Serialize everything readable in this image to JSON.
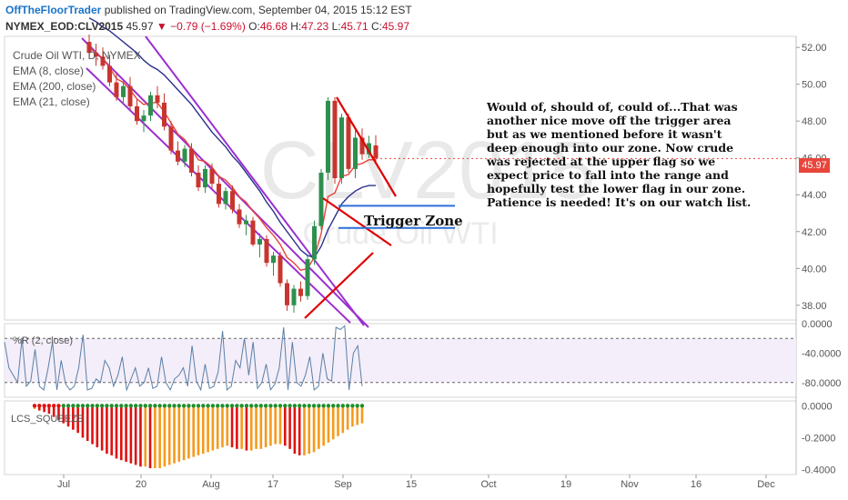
{
  "header": {
    "author": "OffTheFloorTrader",
    "published_text": "published on TradingView.com, September 04, 2015 15:12 EST",
    "symbol": "NYMEX_EOD:CLV2015",
    "last": "45.97",
    "change": "▼ −0.79 (−1.69%)",
    "open_label": "O:",
    "open": "46.68",
    "high_label": "H:",
    "high": "47.23",
    "low_label": "L:",
    "low": "45.71",
    "close_label": "C:",
    "close": "45.97"
  },
  "overlays": [
    "Crude Oil WTI, D, NYMEX",
    "EMA (8, close)",
    "EMA (200, close)",
    "EMA (21, close)"
  ],
  "watermark": {
    "big": "CLV2015",
    "small": "Crude Oil WTI"
  },
  "annotation": "Would of, should of, could of...That was another nice move off the trigger area but as we mentioned before it wasn't deep enough into our zone.  Now crude was rejected at the upper flag so we expect price to fall into the range and hopefully test the lower flag in our zone.  Patience is needed!  It's on our watch list.",
  "trigger_zone_label": "Trigger Zone",
  "current_price_tag": "45.97",
  "colors": {
    "up": "#2f8f4e",
    "down": "#c8352e",
    "ema8": "#e8453c",
    "ema21": "#2b2f8c",
    "channel": "#9b2fd0",
    "flag": "#e00000",
    "zone": "#2e6fd9",
    "wr": "#5b7fa6",
    "sq_red": "#e01010",
    "sq_orange": "#f59a1b",
    "dot_green": "#1f8f2e",
    "dot_red": "#e01010"
  },
  "chart_data": [
    {
      "type": "candlestick",
      "title": "Crude Oil WTI, D, NYMEX",
      "x_ticks": [
        "Jul",
        "20",
        "Aug",
        "17",
        "Sep",
        "15",
        "Oct",
        "19",
        "Nov",
        "16",
        "Dec"
      ],
      "y_ticks": [
        "52.00",
        "50.00",
        "48.00",
        "46.00",
        "44.00",
        "42.00",
        "40.00",
        "38.00"
      ],
      "ylim": [
        37.2,
        52.6
      ],
      "candles": [
        {
          "o": 52.3,
          "h": 52.7,
          "l": 51.4,
          "c": 51.7
        },
        {
          "o": 51.7,
          "h": 52.2,
          "l": 51.0,
          "c": 51.5
        },
        {
          "o": 51.5,
          "h": 52.0,
          "l": 50.8,
          "c": 51.0
        },
        {
          "o": 51.0,
          "h": 51.6,
          "l": 49.9,
          "c": 50.1
        },
        {
          "o": 50.1,
          "h": 50.6,
          "l": 49.1,
          "c": 49.3
        },
        {
          "o": 49.3,
          "h": 50.2,
          "l": 48.9,
          "c": 49.9
        },
        {
          "o": 49.9,
          "h": 50.4,
          "l": 48.6,
          "c": 48.8
        },
        {
          "o": 48.8,
          "h": 49.2,
          "l": 47.8,
          "c": 48.0
        },
        {
          "o": 48.0,
          "h": 48.6,
          "l": 47.4,
          "c": 48.3
        },
        {
          "o": 48.3,
          "h": 49.6,
          "l": 48.0,
          "c": 49.4
        },
        {
          "o": 49.4,
          "h": 49.9,
          "l": 48.7,
          "c": 49.0
        },
        {
          "o": 49.0,
          "h": 49.5,
          "l": 47.5,
          "c": 47.7
        },
        {
          "o": 47.7,
          "h": 48.0,
          "l": 46.2,
          "c": 46.4
        },
        {
          "o": 46.4,
          "h": 46.9,
          "l": 45.6,
          "c": 45.8
        },
        {
          "o": 45.8,
          "h": 46.7,
          "l": 45.5,
          "c": 46.5
        },
        {
          "o": 46.5,
          "h": 46.8,
          "l": 45.0,
          "c": 45.2
        },
        {
          "o": 45.2,
          "h": 45.6,
          "l": 44.2,
          "c": 44.4
        },
        {
          "o": 44.4,
          "h": 45.6,
          "l": 44.1,
          "c": 45.4
        },
        {
          "o": 45.4,
          "h": 45.7,
          "l": 44.3,
          "c": 44.6
        },
        {
          "o": 44.6,
          "h": 45.0,
          "l": 43.3,
          "c": 43.5
        },
        {
          "o": 43.5,
          "h": 44.4,
          "l": 43.2,
          "c": 44.2
        },
        {
          "o": 44.2,
          "h": 44.5,
          "l": 43.0,
          "c": 43.2
        },
        {
          "o": 43.2,
          "h": 43.5,
          "l": 42.2,
          "c": 42.4
        },
        {
          "o": 42.4,
          "h": 42.9,
          "l": 41.8,
          "c": 42.6
        },
        {
          "o": 42.6,
          "h": 42.8,
          "l": 41.2,
          "c": 41.3
        },
        {
          "o": 41.3,
          "h": 41.9,
          "l": 40.6,
          "c": 41.6
        },
        {
          "o": 41.6,
          "h": 41.8,
          "l": 40.1,
          "c": 40.3
        },
        {
          "o": 40.3,
          "h": 40.9,
          "l": 39.6,
          "c": 40.7
        },
        {
          "o": 40.7,
          "h": 40.9,
          "l": 39.0,
          "c": 39.2
        },
        {
          "o": 39.2,
          "h": 39.4,
          "l": 37.7,
          "c": 38.0
        },
        {
          "o": 38.0,
          "h": 39.1,
          "l": 37.6,
          "c": 38.9
        },
        {
          "o": 38.9,
          "h": 39.3,
          "l": 38.2,
          "c": 38.5
        },
        {
          "o": 38.5,
          "h": 40.7,
          "l": 38.3,
          "c": 40.5
        },
        {
          "o": 40.5,
          "h": 42.6,
          "l": 40.2,
          "c": 42.3
        },
        {
          "o": 42.3,
          "h": 45.4,
          "l": 42.1,
          "c": 45.2
        },
        {
          "o": 45.2,
          "h": 49.3,
          "l": 44.8,
          "c": 49.1
        },
        {
          "o": 49.1,
          "h": 49.3,
          "l": 44.6,
          "c": 44.9
        },
        {
          "o": 44.9,
          "h": 48.4,
          "l": 44.6,
          "c": 48.2
        },
        {
          "o": 48.2,
          "h": 48.4,
          "l": 45.2,
          "c": 45.4
        },
        {
          "o": 45.4,
          "h": 47.5,
          "l": 44.9,
          "c": 47.1
        },
        {
          "o": 47.1,
          "h": 47.6,
          "l": 45.9,
          "c": 46.2
        },
        {
          "o": 46.2,
          "h": 47.2,
          "l": 46.0,
          "c": 46.8
        },
        {
          "o": 46.68,
          "h": 47.23,
          "l": 45.71,
          "c": 45.97
        }
      ],
      "ema8": [
        52.0,
        51.7,
        51.4,
        50.9,
        50.3,
        50.1,
        49.7,
        49.2,
        48.9,
        49.0,
        49.0,
        48.5,
        47.9,
        47.3,
        47.0,
        46.5,
        45.9,
        45.8,
        45.5,
        45.0,
        44.8,
        44.4,
        43.9,
        43.6,
        43.1,
        42.7,
        42.2,
        41.8,
        41.3,
        40.6,
        40.3,
        39.9,
        40.0,
        40.6,
        41.9,
        43.9,
        44.1,
        45.0,
        45.1,
        45.6,
        45.7,
        45.9,
        45.9
      ],
      "ema21": [
        53.6,
        53.4,
        53.1,
        52.9,
        52.6,
        52.3,
        52.0,
        51.7,
        51.3,
        51.0,
        50.8,
        50.5,
        50.1,
        49.7,
        49.3,
        48.9,
        48.4,
        47.9,
        47.4,
        47.0,
        46.6,
        46.1,
        45.7,
        45.2,
        44.7,
        44.2,
        43.6,
        43.1,
        42.5,
        42.0,
        41.5,
        41.0,
        40.7,
        40.6,
        41.2,
        42.1,
        42.8,
        43.5,
        43.9,
        44.2,
        44.4,
        44.5,
        44.5
      ],
      "trigger_zone": [
        42.2,
        43.4
      ],
      "current_price": 45.97
    },
    {
      "type": "line",
      "title": "%R (2, close)",
      "y_ticks": [
        "0.0000",
        "-40.0000",
        "-80.0000"
      ],
      "ylim": [
        -100,
        0
      ],
      "values": [
        -25,
        -60,
        -70,
        -80,
        -20,
        -85,
        -78,
        -35,
        -85,
        -90,
        -60,
        -25,
        -90,
        -50,
        -82,
        -90,
        -85,
        -60,
        -15,
        -90,
        -88,
        -75,
        -80,
        -50,
        -60,
        -85,
        -70,
        -45,
        -90,
        -75,
        -60,
        -85,
        -80,
        -60,
        -88,
        -85,
        -45,
        -80,
        -90,
        -75,
        -70,
        -60,
        -85,
        -30,
        -78,
        -90,
        -55,
        -88,
        -85,
        -65,
        -10,
        -90,
        -85,
        -50,
        -60,
        -20,
        -70,
        -25,
        -88,
        -80,
        -55,
        -90,
        -82,
        -60,
        -5,
        -90,
        -25,
        -80,
        -85,
        -70,
        -45,
        -90,
        -85,
        -40,
        -75,
        -78,
        -5,
        -8,
        -3,
        -90,
        -40,
        -30,
        -85
      ]
    },
    {
      "type": "bar",
      "title": "LCS_SQUEEZE",
      "y_ticks": [
        "0.0000",
        "-0.2000",
        "-0.4000"
      ],
      "ylim": [
        -0.43,
        0.03
      ],
      "values": [
        -0.02,
        -0.03,
        -0.04,
        -0.05,
        -0.07,
        -0.09,
        -0.11,
        -0.13,
        -0.15,
        -0.17,
        -0.2,
        -0.22,
        -0.24,
        -0.26,
        -0.28,
        -0.3,
        -0.31,
        -0.33,
        -0.34,
        -0.35,
        -0.36,
        -0.37,
        -0.38,
        -0.38,
        -0.39,
        -0.39,
        -0.39,
        -0.38,
        -0.37,
        -0.36,
        -0.35,
        -0.34,
        -0.33,
        -0.32,
        -0.31,
        -0.3,
        -0.29,
        -0.28,
        -0.27,
        -0.26,
        -0.25,
        -0.26,
        -0.27,
        -0.27,
        -0.28,
        -0.28,
        -0.27,
        -0.27,
        -0.26,
        -0.25,
        -0.24,
        -0.24,
        -0.25,
        -0.27,
        -0.3,
        -0.31,
        -0.31,
        -0.3,
        -0.29,
        -0.27,
        -0.25,
        -0.23,
        -0.21,
        -0.19,
        -0.17,
        -0.15,
        -0.13,
        -0.12,
        -0.11
      ]
    }
  ]
}
